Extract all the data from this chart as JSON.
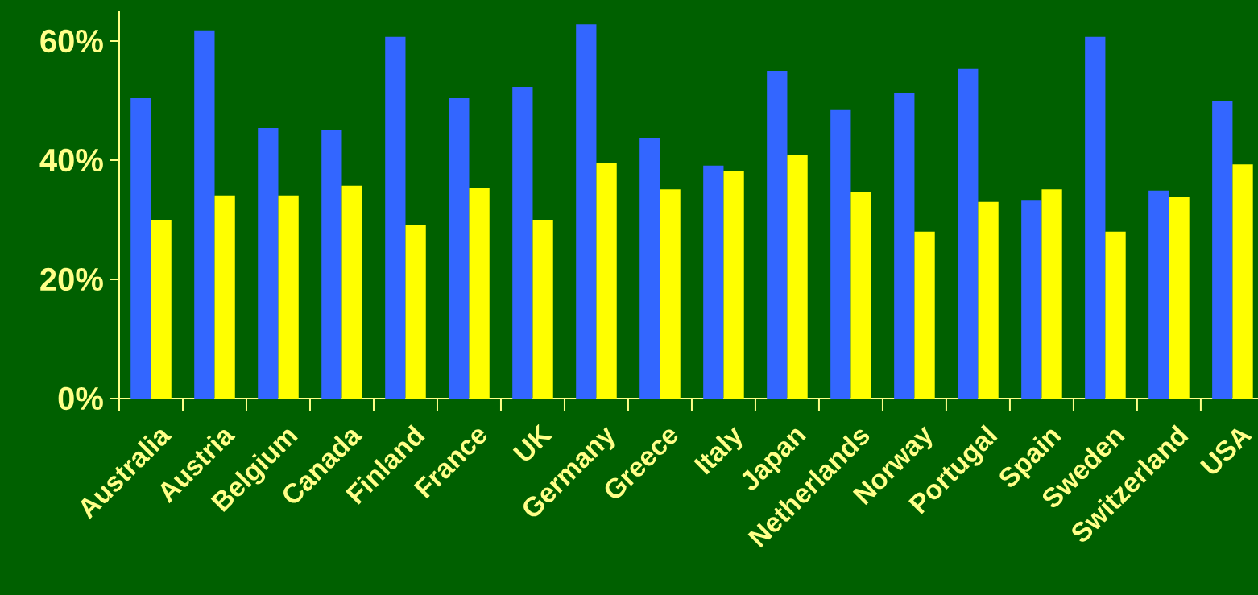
{
  "chart_data": {
    "type": "bar",
    "categories": [
      "Australia",
      "Austria",
      "Belgium",
      "Canada",
      "Finland",
      "France",
      "UK",
      "Germany",
      "Greece",
      "Italy",
      "Japan",
      "Netherlands",
      "Norway",
      "Portugal",
      "Spain",
      "Sweden",
      "Switzerland",
      "USA"
    ],
    "series": [
      {
        "color": "#3366ff",
        "values": [
          50.4,
          61.8,
          45.4,
          45.1,
          60.7,
          50.4,
          52.3,
          62.8,
          43.8,
          39.1,
          55.0,
          48.4,
          51.2,
          55.3,
          33.2,
          60.7,
          34.9,
          49.9
        ]
      },
      {
        "color": "#ffff00",
        "values": [
          30.0,
          34.1,
          34.1,
          35.7,
          29.1,
          35.4,
          30.0,
          39.6,
          35.1,
          38.2,
          40.9,
          34.6,
          28.0,
          33.0,
          35.1,
          28.0,
          33.8,
          39.3
        ]
      }
    ],
    "ylim": [
      0,
      65
    ],
    "yticks": [
      {
        "value": 0,
        "label": "0%"
      },
      {
        "value": 20,
        "label": "20%"
      },
      {
        "value": 40,
        "label": "40%"
      },
      {
        "value": 60,
        "label": "60%"
      }
    ],
    "grid": false
  }
}
